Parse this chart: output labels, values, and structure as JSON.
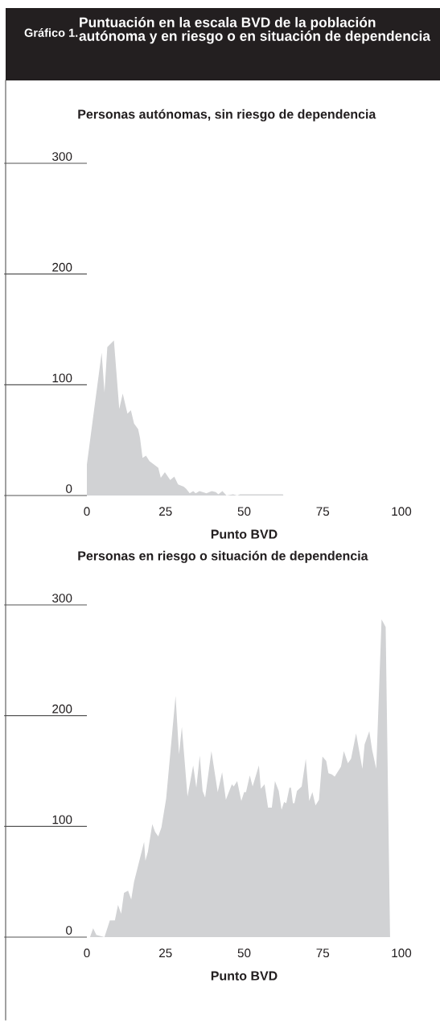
{
  "chart_data": [
    {
      "type": "area",
      "title": "Personas autónomas, sin riesgo de dependencia",
      "xlabel": "Punto BVD",
      "annotations": [
        "Gráfico 1.",
        "Puntuación en la escala BVD de la población autónoma y en riesgo o en situación de dependencia"
      ],
      "x": [
        0,
        4.7,
        5.6,
        6.5,
        8.6,
        10.3,
        11.4,
        12.9,
        14,
        15,
        16.3,
        16.9,
        17.7,
        18.8,
        19.9,
        22.7,
        23.5,
        24.8,
        26.5,
        27.8,
        29,
        30.8,
        31.6,
        32.7,
        33.8,
        34.6,
        35.8,
        38,
        39.7,
        41,
        41.8,
        43.1,
        44.4,
        46.5,
        47.8,
        48.7,
        62.3,
        62.5
      ],
      "series": [
        {
          "color": "#d1d2d4",
          "values": [
            28,
            129,
            93,
            134,
            140,
            78,
            92,
            74,
            77,
            65,
            60,
            52,
            34,
            36,
            31,
            25,
            16,
            21,
            14,
            17,
            10,
            8,
            6,
            2,
            4,
            2,
            4,
            2,
            4,
            3,
            1,
            4,
            0,
            1,
            0,
            1,
            1,
            0
          ]
        }
      ],
      "xlim": [
        0,
        100
      ],
      "xticks": [
        0,
        25,
        50,
        75,
        100
      ],
      "ylim": [
        0,
        300
      ],
      "yticks": [
        0,
        100,
        200,
        300
      ],
      "grid": false,
      "legend": false
    },
    {
      "type": "area",
      "title": "Personas en riesgo o situación de dependencia",
      "xlabel": "Punto BVD",
      "x": [
        1,
        2,
        3,
        5.6,
        7.3,
        8.9,
        9.9,
        10.9,
        11.8,
        13.1,
        14.1,
        15,
        18.2,
        18.6,
        19.4,
        20.8,
        21.7,
        22.7,
        23.7,
        25.2,
        28.2,
        29.3,
        30.2,
        32,
        33.8,
        34.8,
        35.9,
        36.8,
        37.6,
        39.6,
        41.6,
        43,
        44.2,
        46.1,
        46.7,
        47.8,
        49.1,
        50,
        50.6,
        51.8,
        52.7,
        54.7,
        55.3,
        56.5,
        57.6,
        58.8,
        59.8,
        61,
        61.9,
        62.7,
        63.4,
        64.4,
        64.9,
        65.5,
        66,
        66.8,
        68.3,
        69.6,
        70.7,
        71.7,
        72.7,
        73.8,
        74.9,
        76.1,
        76.8,
        77.9,
        78.8,
        80.8,
        81.7,
        83,
        84,
        85.6,
        87.6,
        88.3,
        89.8,
        90.7,
        92,
        93.7,
        95,
        96.4,
        97.5
      ],
      "series": [
        {
          "color": "#d1d2d4",
          "values": [
            0,
            8,
            2,
            0,
            15,
            15,
            29,
            21,
            40,
            42,
            34,
            50,
            86,
            69,
            77,
            102,
            95,
            91,
            99,
            125,
            218,
            165,
            190,
            127,
            155,
            135,
            164,
            132,
            126,
            168,
            131,
            149,
            124,
            138,
            136,
            141,
            123,
            131,
            131,
            146,
            136,
            155,
            134,
            138,
            117,
            117,
            141,
            132,
            115,
            122,
            121,
            135,
            135,
            121,
            121,
            132,
            136,
            161,
            123,
            131,
            119,
            124,
            163,
            159,
            148,
            147,
            145,
            154,
            168,
            157,
            161,
            184,
            152,
            174,
            186,
            169,
            152,
            287,
            280,
            0,
            0
          ]
        }
      ],
      "xlim": [
        0,
        100
      ],
      "xticks": [
        0,
        25,
        50,
        75,
        100
      ],
      "ylim": [
        0,
        300
      ],
      "yticks": [
        0,
        100,
        200,
        300
      ],
      "grid": false,
      "legend": false
    }
  ]
}
